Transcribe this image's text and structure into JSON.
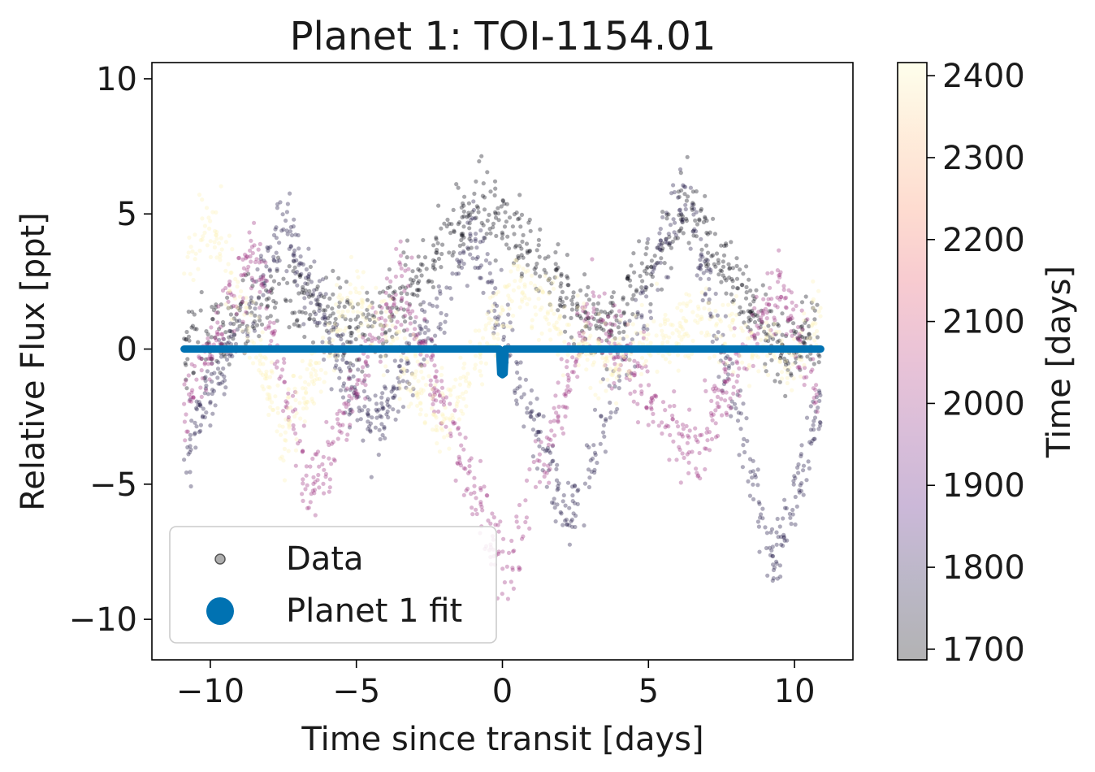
{
  "chart_data": {
    "type": "scatter",
    "title": "Planet 1: TOI-1154.01",
    "xlabel": "Time since transit [days]",
    "ylabel": "Relative Flux [ppt]",
    "xlim": [
      -12,
      12
    ],
    "ylim": [
      -11.5,
      10.6
    ],
    "xticks": [
      -10,
      -5,
      0,
      5,
      10
    ],
    "xtick_labels": [
      "−10",
      "−5",
      "0",
      "5",
      "10"
    ],
    "yticks": [
      -10,
      -5,
      0,
      5,
      10
    ],
    "ytick_labels": [
      "−10",
      "−5",
      "0",
      "5",
      "10"
    ],
    "grid": false,
    "legend": {
      "placement": "lower-left",
      "entries": [
        {
          "label": "Data",
          "marker": "small-gray-circle",
          "color": "#8c8c8c"
        },
        {
          "label": "Planet 1 fit",
          "marker": "large-blue-circle",
          "color": "#0072b2"
        }
      ]
    },
    "colorbar": {
      "label": "Time [days]",
      "range": [
        1687,
        2416
      ],
      "ticks": [
        1700,
        1800,
        1900,
        2000,
        2100,
        2200,
        2300,
        2400
      ],
      "tick_labels": [
        "1700",
        "1800",
        "1900",
        "2000",
        "2100",
        "2200",
        "2300",
        "2400"
      ],
      "colormap": "magma",
      "alpha": 0.3
    },
    "series": [
      {
        "name": "Data",
        "kind": "scatter",
        "x_range": [
          -10.9,
          10.9
        ],
        "color_by": "time",
        "segments": [
          {
            "time": 1700,
            "center_x": [
              -10.9,
              -7.5,
              -4.5,
              -0.7,
              3.5,
              6.3,
              9.5,
              10.9
            ],
            "center_y": [
              0.0,
              2.0,
              0.5,
              5.5,
              0.5,
              5.5,
              0.0,
              0.5
            ]
          },
          {
            "time": 1780,
            "center_x": [
              -10.9,
              -7.5,
              -4.5,
              -1.0,
              2.3,
              6.2,
              9.3,
              10.9
            ],
            "center_y": [
              -4.0,
              4.5,
              -3.0,
              4.0,
              -6.5,
              6.0,
              -8.0,
              -2.0
            ]
          },
          {
            "time": 2010,
            "center_x": [
              -10.9,
              -8.5,
              -6.6,
              -3.5,
              0.1,
              3.0,
              6.5,
              9.5,
              10.9
            ],
            "center_y": [
              -2.0,
              3.5,
              -5.5,
              2.5,
              -8.5,
              1.5,
              -4.0,
              2.5,
              -2.0
            ]
          },
          {
            "time": 2400,
            "center_x": [
              -10.9,
              -9.8,
              -7.5,
              -5.0,
              -2.0,
              0.5,
              3.5,
              7.0,
              10.0,
              10.9
            ],
            "center_y": [
              3.5,
              4.5,
              -3.0,
              2.0,
              -2.5,
              2.5,
              -0.5,
              1.0,
              -0.5,
              1.5
            ]
          }
        ]
      },
      {
        "name": "Planet 1 fit",
        "kind": "line",
        "color": "#0072b2",
        "x": [
          -10.9,
          -0.1,
          -0.06,
          0.0,
          0.06,
          0.1,
          10.9
        ],
        "y": [
          0.0,
          0.0,
          -0.9,
          -0.95,
          -0.9,
          0.0,
          0.0
        ]
      }
    ]
  }
}
